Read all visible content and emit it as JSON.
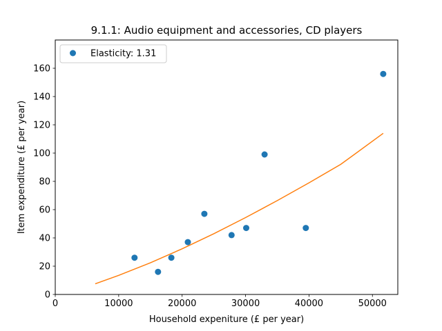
{
  "chart_data": {
    "type": "scatter",
    "title": "9.1.1: Audio equipment and accessories, CD players",
    "xlabel": "Household expeniture (£ per year)",
    "ylabel": "Item expenditure (£ per year)",
    "xlim": [
      0,
      54000
    ],
    "ylim": [
      0,
      180
    ],
    "xticks": [
      0,
      10000,
      20000,
      30000,
      40000,
      50000
    ],
    "yticks": [
      0,
      20,
      40,
      60,
      80,
      100,
      120,
      140,
      160
    ],
    "grid": false,
    "legend_position": "top-left",
    "series": [
      {
        "name": "Elasticity: 1.31",
        "kind": "points",
        "color": "#1f77b4",
        "x": [
          12500,
          16200,
          18300,
          20900,
          23500,
          27800,
          30100,
          33000,
          39500,
          51700
        ],
        "y": [
          26,
          16,
          26,
          37,
          57,
          42,
          47,
          99,
          47,
          156
        ]
      },
      {
        "kind": "fit-line",
        "color": "#ff7f0e",
        "x": [
          6300,
          10000,
          15000,
          20000,
          25000,
          30000,
          35000,
          40000,
          45000,
          51700
        ],
        "y": [
          7.5,
          13.5,
          22.4,
          32.3,
          43.0,
          54.4,
          66.4,
          79.0,
          92.0,
          114
        ]
      }
    ]
  }
}
